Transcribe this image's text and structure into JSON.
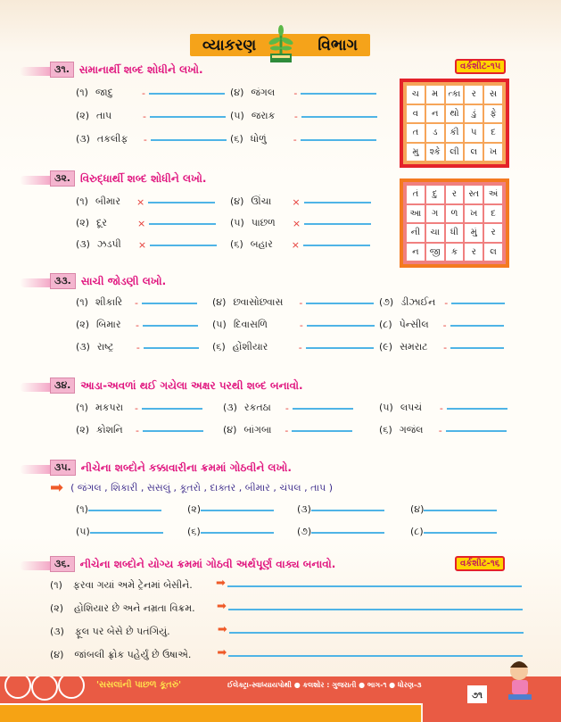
{
  "banner": {
    "left": "વ્યાકરણ",
    "right": "વિભાગ"
  },
  "worksheets": {
    "ws15": "વર્કશીટ-૧૫",
    "ws16": "વર્કશીટ-૧૬"
  },
  "s31": {
    "num": "૩૧.",
    "title": "સમાનાર્થી શબ્દ શોધીને લખો.",
    "items": [
      {
        "n": "(૧)",
        "w": "જાદુ"
      },
      {
        "n": "(૨)",
        "w": "તાપ"
      },
      {
        "n": "(૩)",
        "w": "તકલીફ"
      },
      {
        "n": "(૪)",
        "w": "જંગલ"
      },
      {
        "n": "(૫)",
        "w": "જરાક"
      },
      {
        "n": "(૬)",
        "w": "ધોળું"
      }
    ],
    "sep": "-"
  },
  "grid1": [
    "ચ",
    "મ",
    "ત્કા",
    "ર",
    "સ",
    "વ",
    "ન",
    "થો",
    "ડું",
    "ફે",
    "ત",
    "ડ",
    "કી",
    "પ",
    "દ",
    "મુ",
    "શ્કે",
    "લી",
    "લ",
    "ખ"
  ],
  "s32": {
    "num": "૩૨.",
    "title": "વિરુદ્ધાર્થી શબ્દ શોધીને લખો.",
    "items": [
      {
        "n": "(૧)",
        "w": "બીમાર"
      },
      {
        "n": "(૨)",
        "w": "દૂર"
      },
      {
        "n": "(૩)",
        "w": "ઝડપી"
      },
      {
        "n": "(૪)",
        "w": "ઊંચા"
      },
      {
        "n": "(૫)",
        "w": "પાછળ"
      },
      {
        "n": "(૬)",
        "w": "બહાર"
      }
    ],
    "sep": "×"
  },
  "grid2": [
    "તં",
    "દુ",
    "ર",
    "સ્ત",
    "અં",
    "આ",
    "ગ",
    "ળ",
    "ખ",
    "દ",
    "ની",
    "ચા",
    "ધી",
    "મું",
    "ર",
    "ન",
    "જી",
    "ક",
    "ર",
    "લ"
  ],
  "s33": {
    "num": "૩૩.",
    "title": "સાચી જોડણી લખો.",
    "items": [
      {
        "n": "(૧)",
        "w": "શીકારિ"
      },
      {
        "n": "(૨)",
        "w": "બિમાર"
      },
      {
        "n": "(૩)",
        "w": "રાષ્ટ્ર"
      },
      {
        "n": "(૪)",
        "w": "છ્વાસોછ્વાસ"
      },
      {
        "n": "(૫)",
        "w": "દિવાસળિ"
      },
      {
        "n": "(૬)",
        "w": "હોંશીયાર"
      },
      {
        "n": "(૭)",
        "w": "ડીઝાઈન"
      },
      {
        "n": "(૮)",
        "w": "પેન્સીલ"
      },
      {
        "n": "(૯)",
        "w": "સમરાટ"
      }
    ],
    "sep": "-"
  },
  "s34": {
    "num": "૩૪.",
    "title": "આડા-અવળાં થઈ ગયેલા અક્ષર પરથી શબ્દ બનાવો.",
    "items": [
      {
        "n": "(૧)",
        "w": "મકપરા"
      },
      {
        "n": "(૨)",
        "w": "કોશનિ"
      },
      {
        "n": "(૩)",
        "w": "રકતઠા"
      },
      {
        "n": "(૪)",
        "w": "બાંગબા"
      },
      {
        "n": "(૫)",
        "w": "લપચં"
      },
      {
        "n": "(૬)",
        "w": "ગજંલ"
      }
    ],
    "sep": "-"
  },
  "s35": {
    "num": "૩૫.",
    "title": "નીચેના શબ્દોને કક્કાવારીના ક્રમમાં ગોઠવીને લખો.",
    "words": "( જંગલ ,  શિકારી ,  સસલું ,  કૂતરો ,  દાક્તર ,  બીમાર ,  ચંપલ ,  તાપ )",
    "nums": [
      "(૧)",
      "(૨)",
      "(૩)",
      "(૪)",
      "(૫)",
      "(૬)",
      "(૭)",
      "(૮)"
    ]
  },
  "s36": {
    "num": "૩૬.",
    "title": "નીચેના શબ્દોને યોગ્ય ક્રમમાં ગોઠવી અર્થપૂર્ણ વાક્ય બનાવો.",
    "items": [
      {
        "n": "(૧)",
        "w": "ફરવા ગયાં અમે ટ્રેનમાં બેસીને."
      },
      {
        "n": "(૨)",
        "w": "હોશિયાર છે અને નમ્રતા વિક્રમ."
      },
      {
        "n": "(૩)",
        "w": "ફૂલ પર બેસે છે પતંગિયું."
      },
      {
        "n": "(૪)",
        "w": "જાંબલી ફ્રોક પહેર્યું છે ઉષાએ."
      }
    ]
  },
  "footer": {
    "story": "'સસલાંની પાછળ કૂતરું'",
    "book": "ઈલેક્ટ્રા-સ્વાધ્યાયપોથી ● કલશોર : ગુજરાતી ● ભાગ-૧ ● ધોરણ-૩",
    "page": "૭૧"
  },
  "colors": {
    "heading": "#e0157f",
    "line": "#4fb4e6",
    "banner": "#f5a31a",
    "footer": "#e95b44"
  }
}
